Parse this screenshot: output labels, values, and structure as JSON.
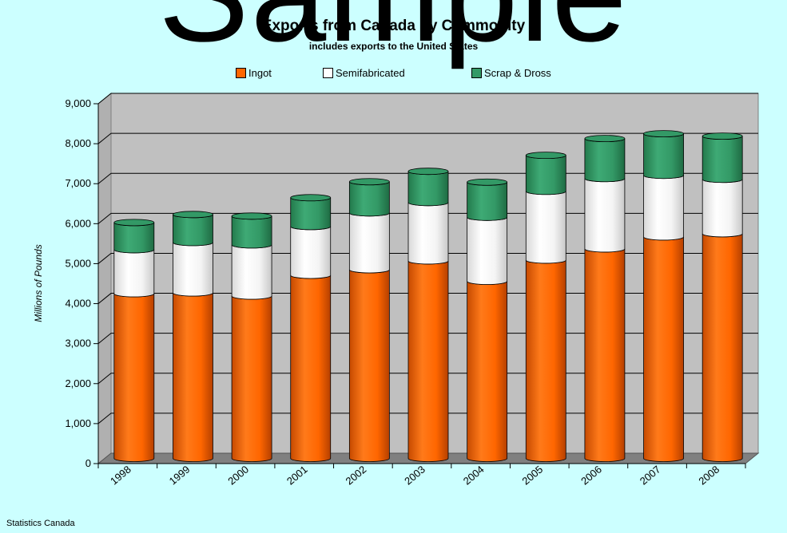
{
  "watermark": "Sample",
  "chart_data": {
    "type": "bar",
    "stacked": true,
    "title": "Exports from Canada by Commodity",
    "subtitle": "includes exports to the United States",
    "ylabel": "Millions of Pounds",
    "ylim": [
      0,
      9000
    ],
    "yticks": [
      "0",
      "1,000",
      "2,000",
      "3,000",
      "4,000",
      "5,000",
      "6,000",
      "7,000",
      "8,000",
      "9,000"
    ],
    "categories": [
      "1998",
      "1999",
      "2000",
      "2001",
      "2002",
      "2003",
      "2004",
      "2005",
      "2006",
      "2007",
      "2008"
    ],
    "series": [
      {
        "name": "Ingot",
        "color": "#ff6600",
        "values": [
          4120,
          4140,
          4060,
          4580,
          4720,
          4940,
          4430,
          4960,
          5240,
          5540,
          5620
        ]
      },
      {
        "name": "Semifabricated",
        "color": "#ffffff",
        "values": [
          1100,
          1260,
          1280,
          1220,
          1420,
          1460,
          1600,
          1720,
          1760,
          1540,
          1360
        ]
      },
      {
        "name": "Scrap & Dross",
        "color": "#339966",
        "values": [
          680,
          700,
          720,
          720,
          780,
          780,
          880,
          900,
          1000,
          1040,
          1080
        ]
      }
    ],
    "legend_position": "top-center",
    "grid": true,
    "source": "Statistics Canada"
  }
}
